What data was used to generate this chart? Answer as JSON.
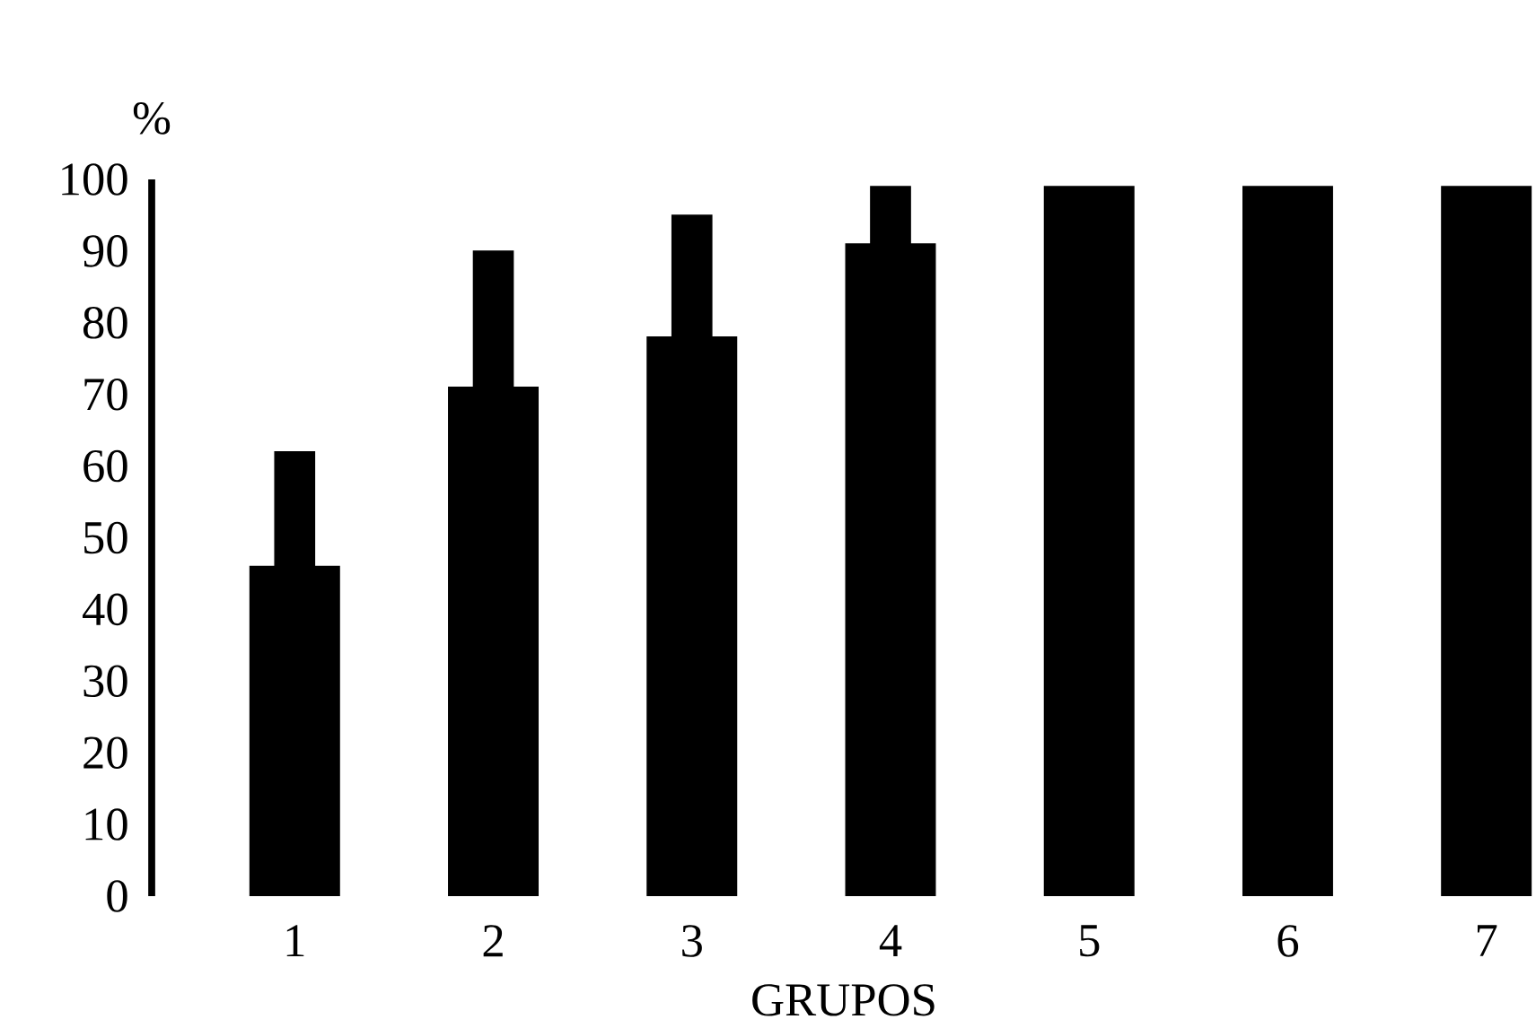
{
  "chart_data": {
    "type": "bar",
    "xlabel": "GRUPOS",
    "ylabel": "%",
    "categories": [
      "1",
      "2",
      "3",
      "4",
      "5",
      "6",
      "7"
    ],
    "series": [
      {
        "color": "#000000",
        "values": [
          46,
          71,
          78,
          91,
          99,
          99,
          99
        ]
      },
      {
        "color": "#000000",
        "base": [
          46,
          71,
          78,
          91,
          null,
          null,
          null
        ],
        "values": [
          16,
          19,
          17,
          8,
          null,
          null,
          null
        ]
      }
    ],
    "ylim": [
      0,
      100
    ],
    "yticks": [
      0,
      10,
      20,
      30,
      40,
      50,
      60,
      70,
      80,
      90,
      100
    ]
  }
}
